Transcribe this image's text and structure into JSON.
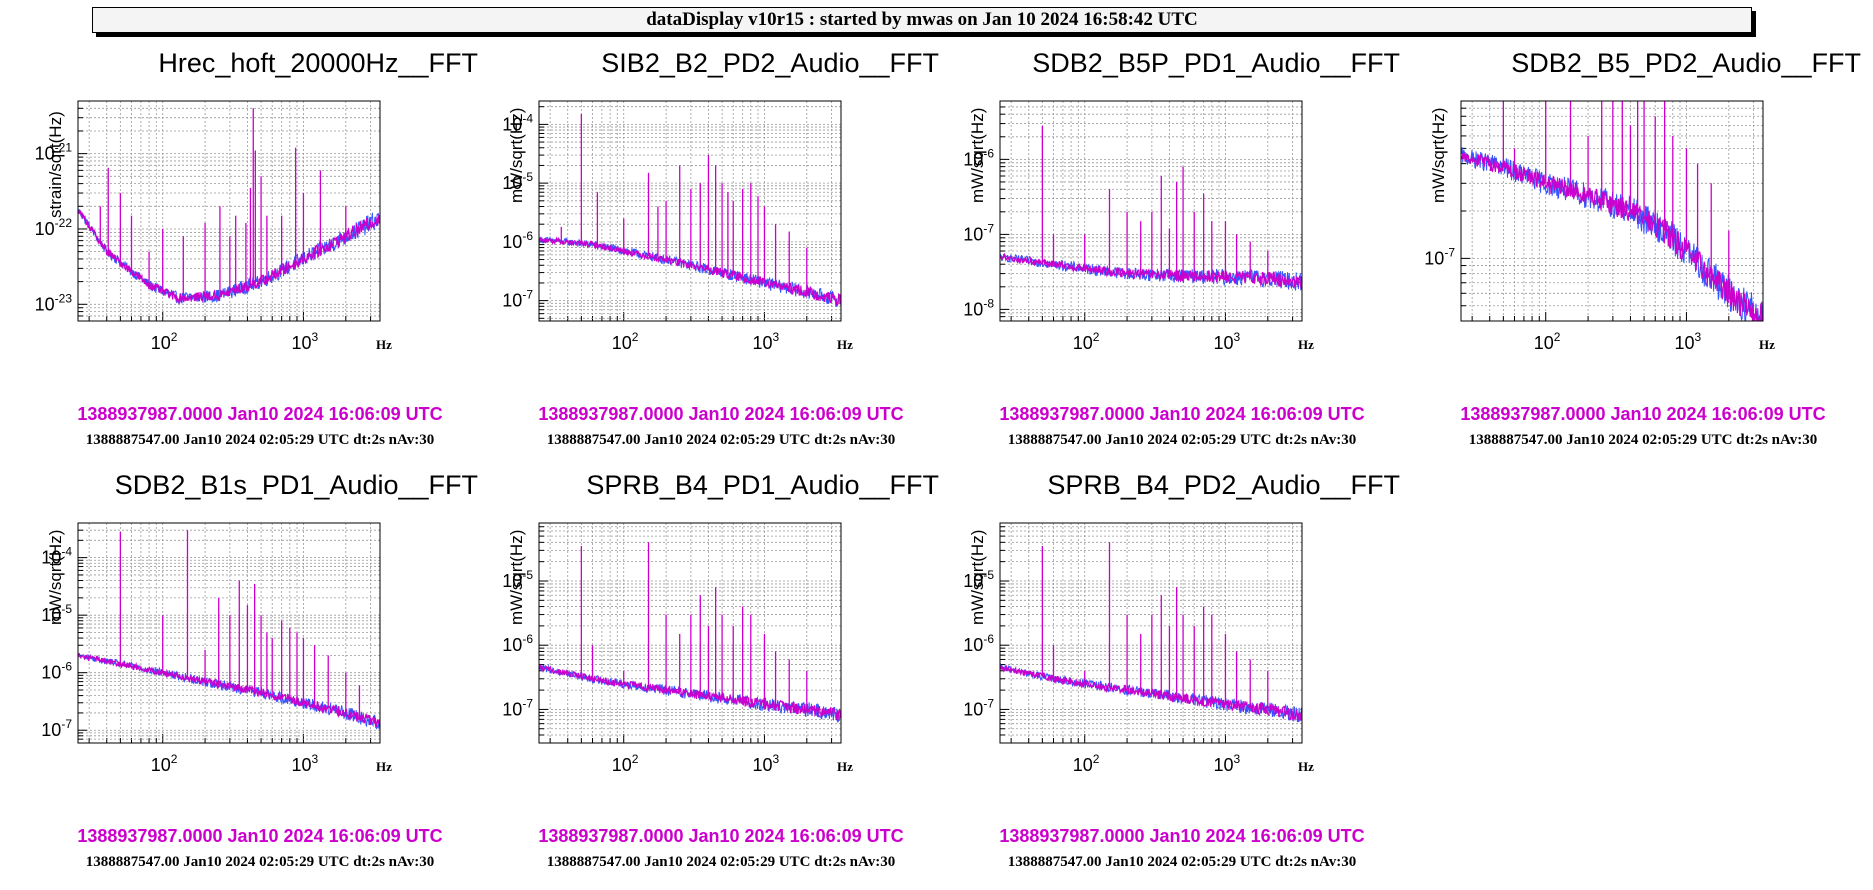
{
  "header": {
    "title": "dataDisplay v10r15 : started by mwas on Jan 10 2024 16:58:42 UTC"
  },
  "colors": {
    "trace_front": "#cc00cc",
    "trace_back": "#3355ff",
    "grid": "#999999",
    "stamp": "#cc00cc"
  },
  "chart_data": [
    {
      "type": "line",
      "title": "Hrec_hoft_20000Hz__FFT",
      "ylabel": "strain/sqrt(Hz)",
      "xlabel": "Hz",
      "xscale": "log",
      "yscale": "log",
      "xlim": [
        25,
        3500
      ],
      "ylim": [
        6e-24,
        5e-21
      ],
      "x_ticks": [
        {
          "v": 100,
          "m": "10",
          "e": "2"
        },
        {
          "v": 1000,
          "m": "10",
          "e": "3"
        }
      ],
      "y_ticks": [
        {
          "v": 1e-21,
          "m": "10",
          "e": "-21"
        },
        {
          "v": 1e-22,
          "m": "10",
          "e": "-22"
        },
        {
          "v": 1e-23,
          "m": "10",
          "e": "-23"
        }
      ],
      "baseline": [
        [
          25,
          1.8e-22
        ],
        [
          40,
          5e-23
        ],
        [
          80,
          1.8e-23
        ],
        [
          130,
          1.2e-23
        ],
        [
          250,
          1.3e-23
        ],
        [
          500,
          2e-23
        ],
        [
          1000,
          4e-23
        ],
        [
          2000,
          8e-23
        ],
        [
          3500,
          1.4e-22
        ]
      ],
      "peaks": [
        [
          36,
          2e-22
        ],
        [
          41,
          6.5e-22
        ],
        [
          50,
          3e-22
        ],
        [
          60,
          1.5e-22
        ],
        [
          80,
          5e-23
        ],
        [
          100,
          1e-22
        ],
        [
          140,
          8e-23
        ],
        [
          200,
          1.2e-22
        ],
        [
          255,
          2e-22
        ],
        [
          300,
          8e-23
        ],
        [
          330,
          1.5e-22
        ],
        [
          390,
          1.2e-22
        ],
        [
          420,
          3.5e-22
        ],
        [
          440,
          4e-21
        ],
        [
          455,
          1.1e-21
        ],
        [
          500,
          5e-22
        ],
        [
          550,
          1.5e-22
        ],
        [
          700,
          1.5e-22
        ],
        [
          880,
          1.2e-21
        ],
        [
          1000,
          3e-22
        ],
        [
          1320,
          6e-22
        ],
        [
          2000,
          2e-22
        ]
      ],
      "stamp_time": "1388937987.0000 Jan10 2024 16:06:09 UTC",
      "stamp_info": "1388887547.00 Jan10 2024 02:05:29 UTC dt:2s nAv:30"
    },
    {
      "type": "line",
      "title": "SIB2_B2_PD2_Audio__FFT",
      "ylabel": "mW/sqrt(Hz)",
      "xlabel": "Hz",
      "xscale": "log",
      "yscale": "log",
      "xlim": [
        25,
        3500
      ],
      "ylim": [
        4.5e-08,
        0.00025
      ],
      "x_ticks": [
        {
          "v": 100,
          "m": "10",
          "e": "2"
        },
        {
          "v": 1000,
          "m": "10",
          "e": "3"
        }
      ],
      "y_ticks": [
        {
          "v": 0.0001,
          "m": "10",
          "e": "-4"
        },
        {
          "v": 1e-05,
          "m": "10",
          "e": "-5"
        },
        {
          "v": 1e-06,
          "m": "10",
          "e": "-6"
        },
        {
          "v": 1e-07,
          "m": "10",
          "e": "-7"
        }
      ],
      "baseline": [
        [
          25,
          1.1e-06
        ],
        [
          60,
          9e-07
        ],
        [
          100,
          7e-07
        ],
        [
          200,
          5e-07
        ],
        [
          500,
          3e-07
        ],
        [
          1000,
          2e-07
        ],
        [
          2000,
          1.4e-07
        ],
        [
          3500,
          1e-07
        ]
      ],
      "peaks": [
        [
          36,
          1.8e-06
        ],
        [
          50,
          0.00015
        ],
        [
          65,
          7e-06
        ],
        [
          100,
          2.5e-06
        ],
        [
          150,
          1.5e-05
        ],
        [
          175,
          4e-06
        ],
        [
          200,
          5e-06
        ],
        [
          250,
          2e-05
        ],
        [
          300,
          8e-06
        ],
        [
          350,
          1e-05
        ],
        [
          400,
          3e-05
        ],
        [
          450,
          2e-05
        ],
        [
          500,
          1e-05
        ],
        [
          550,
          7e-06
        ],
        [
          600,
          5e-06
        ],
        [
          700,
          8e-06
        ],
        [
          800,
          1e-05
        ],
        [
          900,
          6e-06
        ],
        [
          1000,
          4e-06
        ],
        [
          1200,
          2e-06
        ],
        [
          1500,
          1.5e-06
        ],
        [
          2000,
          8e-07
        ]
      ],
      "stamp_time": "1388937987.0000 Jan10 2024 16:06:09 UTC",
      "stamp_info": "1388887547.00 Jan10 2024 02:05:29 UTC dt:2s nAv:30"
    },
    {
      "type": "line",
      "title": "SDB2_B5P_PD1_Audio__FFT",
      "ylabel": "mW/sqrt(Hz)",
      "xlabel": "Hz",
      "xscale": "log",
      "yscale": "log",
      "xlim": [
        25,
        3500
      ],
      "ylim": [
        7e-09,
        6e-06
      ],
      "x_ticks": [
        {
          "v": 100,
          "m": "10",
          "e": "2"
        },
        {
          "v": 1000,
          "m": "10",
          "e": "3"
        }
      ],
      "y_ticks": [
        {
          "v": 1e-06,
          "m": "10",
          "e": "-6"
        },
        {
          "v": 1e-07,
          "m": "10",
          "e": "-7"
        },
        {
          "v": 1e-08,
          "m": "10",
          "e": "-8"
        }
      ],
      "baseline": [
        [
          25,
          5e-08
        ],
        [
          60,
          4e-08
        ],
        [
          100,
          3.5e-08
        ],
        [
          200,
          3e-08
        ],
        [
          500,
          2.8e-08
        ],
        [
          1000,
          2.7e-08
        ],
        [
          2000,
          2.6e-08
        ],
        [
          3500,
          2.3e-08
        ]
      ],
      "peaks": [
        [
          50,
          2.8e-06
        ],
        [
          60,
          1e-07
        ],
        [
          100,
          1e-07
        ],
        [
          150,
          4e-07
        ],
        [
          200,
          2e-07
        ],
        [
          250,
          1.5e-07
        ],
        [
          300,
          2e-07
        ],
        [
          350,
          6e-07
        ],
        [
          400,
          1.2e-07
        ],
        [
          450,
          5e-07
        ],
        [
          500,
          8e-07
        ],
        [
          600,
          2e-07
        ],
        [
          700,
          3.5e-07
        ],
        [
          800,
          1.5e-07
        ],
        [
          1000,
          1.5e-07
        ],
        [
          1200,
          1e-07
        ],
        [
          1500,
          8e-08
        ],
        [
          2000,
          6e-08
        ]
      ],
      "stamp_time": "1388937987.0000 Jan10 2024 16:06:09 UTC",
      "stamp_info": "1388887547.00 Jan10 2024 02:05:29 UTC dt:2s nAv:30"
    },
    {
      "type": "line",
      "title": "SDB2_B5_PD2_Audio__FFT",
      "ylabel": "mW/sqrt(Hz)",
      "xlabel": "Hz",
      "xscale": "log",
      "yscale": "log",
      "xlim": [
        25,
        3500
      ],
      "ylim": [
        4e-08,
        1e-06
      ],
      "x_ticks": [
        {
          "v": 100,
          "m": "10",
          "e": "2"
        },
        {
          "v": 1000,
          "m": "10",
          "e": "3"
        }
      ],
      "y_ticks": [
        {
          "v": 1e-07,
          "m": "10",
          "e": "-7"
        }
      ],
      "baseline": [
        [
          25,
          4.5e-07
        ],
        [
          50,
          3.8e-07
        ],
        [
          100,
          3e-07
        ],
        [
          200,
          2.5e-07
        ],
        [
          400,
          2e-07
        ],
        [
          700,
          1.5e-07
        ],
        [
          1000,
          1.1e-07
        ],
        [
          2000,
          6e-08
        ],
        [
          3500,
          4.2e-08
        ]
      ],
      "peaks": [
        [
          50,
          1e-06
        ],
        [
          60,
          5e-07
        ],
        [
          100,
          1e-06
        ],
        [
          150,
          1e-06
        ],
        [
          200,
          6e-07
        ],
        [
          250,
          1e-06
        ],
        [
          300,
          1e-06
        ],
        [
          350,
          1e-06
        ],
        [
          400,
          7e-07
        ],
        [
          450,
          1e-06
        ],
        [
          500,
          1e-06
        ],
        [
          600,
          8e-07
        ],
        [
          700,
          1e-06
        ],
        [
          800,
          6e-07
        ],
        [
          1000,
          5e-07
        ],
        [
          1200,
          4e-07
        ],
        [
          1500,
          3e-07
        ],
        [
          2000,
          1.5e-07
        ]
      ],
      "stamp_time": "1388937987.0000 Jan10 2024 16:06:09 UTC",
      "stamp_info": "1388887547.00 Jan10 2024 02:05:29 UTC dt:2s nAv:30"
    },
    {
      "type": "line",
      "title": "SDB2_B1s_PD1_Audio__FFT",
      "ylabel": "mW/sqrt(Hz)",
      "xlabel": "Hz",
      "xscale": "log",
      "yscale": "log",
      "xlim": [
        25,
        3500
      ],
      "ylim": [
        6e-08,
        0.0004
      ],
      "x_ticks": [
        {
          "v": 100,
          "m": "10",
          "e": "2"
        },
        {
          "v": 1000,
          "m": "10",
          "e": "3"
        }
      ],
      "y_ticks": [
        {
          "v": 0.0001,
          "m": "10",
          "e": "-4"
        },
        {
          "v": 1e-05,
          "m": "10",
          "e": "-5"
        },
        {
          "v": 1e-06,
          "m": "10",
          "e": "-6"
        },
        {
          "v": 1e-07,
          "m": "10",
          "e": "-7"
        }
      ],
      "baseline": [
        [
          25,
          2e-06
        ],
        [
          60,
          1.3e-06
        ],
        [
          100,
          1e-06
        ],
        [
          200,
          7e-07
        ],
        [
          500,
          4.5e-07
        ],
        [
          1000,
          3e-07
        ],
        [
          2000,
          2e-07
        ],
        [
          3500,
          1.3e-07
        ]
      ],
      "peaks": [
        [
          50,
          0.00028
        ],
        [
          100,
          1e-05
        ],
        [
          150,
          0.0003
        ],
        [
          200,
          2.5e-06
        ],
        [
          250,
          2e-05
        ],
        [
          300,
          1e-05
        ],
        [
          350,
          4e-05
        ],
        [
          400,
          1.5e-05
        ],
        [
          450,
          3.5e-05
        ],
        [
          500,
          1e-05
        ],
        [
          550,
          5e-06
        ],
        [
          600,
          4e-06
        ],
        [
          700,
          8e-06
        ],
        [
          800,
          6e-06
        ],
        [
          900,
          5e-06
        ],
        [
          1000,
          4e-06
        ],
        [
          1200,
          3e-06
        ],
        [
          1500,
          2e-06
        ],
        [
          2000,
          1e-06
        ],
        [
          2500,
          6e-07
        ]
      ],
      "stamp_time": "1388937987.0000 Jan10 2024 16:06:09 UTC",
      "stamp_info": "1388887547.00 Jan10 2024 02:05:29 UTC dt:2s nAv:30"
    },
    {
      "type": "line",
      "title": "SPRB_B4_PD1_Audio__FFT",
      "ylabel": "mW/sqrt(Hz)",
      "xlabel": "Hz",
      "xscale": "log",
      "yscale": "log",
      "xlim": [
        25,
        3500
      ],
      "ylim": [
        3e-08,
        8e-05
      ],
      "x_ticks": [
        {
          "v": 100,
          "m": "10",
          "e": "2"
        },
        {
          "v": 1000,
          "m": "10",
          "e": "3"
        }
      ],
      "y_ticks": [
        {
          "v": 1e-05,
          "m": "10",
          "e": "-5"
        },
        {
          "v": 1e-06,
          "m": "10",
          "e": "-6"
        },
        {
          "v": 1e-07,
          "m": "10",
          "e": "-7"
        }
      ],
      "baseline": [
        [
          25,
          4.5e-07
        ],
        [
          60,
          3e-07
        ],
        [
          100,
          2.5e-07
        ],
        [
          200,
          2e-07
        ],
        [
          500,
          1.5e-07
        ],
        [
          1000,
          1.2e-07
        ],
        [
          2000,
          1e-07
        ],
        [
          3500,
          8e-08
        ]
      ],
      "peaks": [
        [
          50,
          3.5e-05
        ],
        [
          60,
          1e-06
        ],
        [
          100,
          4e-07
        ],
        [
          150,
          4e-05
        ],
        [
          200,
          3e-06
        ],
        [
          250,
          1.5e-06
        ],
        [
          300,
          3e-06
        ],
        [
          350,
          6e-06
        ],
        [
          400,
          2e-06
        ],
        [
          450,
          8e-06
        ],
        [
          500,
          3e-06
        ],
        [
          600,
          2e-06
        ],
        [
          700,
          4e-06
        ],
        [
          800,
          3e-06
        ],
        [
          1000,
          1.5e-06
        ],
        [
          1200,
          8e-07
        ],
        [
          1500,
          6e-07
        ],
        [
          2000,
          4e-07
        ]
      ],
      "stamp_time": "1388937987.0000 Jan10 2024 16:06:09 UTC",
      "stamp_info": "1388887547.00 Jan10 2024 02:05:29 UTC dt:2s nAv:30"
    },
    {
      "type": "line",
      "title": "SPRB_B4_PD2_Audio__FFT",
      "ylabel": "mW/sqrt(Hz)",
      "xlabel": "Hz",
      "xscale": "log",
      "yscale": "log",
      "xlim": [
        25,
        3500
      ],
      "ylim": [
        3e-08,
        8e-05
      ],
      "x_ticks": [
        {
          "v": 100,
          "m": "10",
          "e": "2"
        },
        {
          "v": 1000,
          "m": "10",
          "e": "3"
        }
      ],
      "y_ticks": [
        {
          "v": 1e-05,
          "m": "10",
          "e": "-5"
        },
        {
          "v": 1e-06,
          "m": "10",
          "e": "-6"
        },
        {
          "v": 1e-07,
          "m": "10",
          "e": "-7"
        }
      ],
      "baseline": [
        [
          25,
          4.5e-07
        ],
        [
          60,
          3e-07
        ],
        [
          100,
          2.5e-07
        ],
        [
          200,
          2e-07
        ],
        [
          500,
          1.5e-07
        ],
        [
          1000,
          1.2e-07
        ],
        [
          2000,
          1e-07
        ],
        [
          3500,
          8e-08
        ]
      ],
      "peaks": [
        [
          50,
          3.5e-05
        ],
        [
          60,
          1e-06
        ],
        [
          100,
          4e-07
        ],
        [
          150,
          4e-05
        ],
        [
          200,
          3e-06
        ],
        [
          250,
          1.5e-06
        ],
        [
          300,
          3e-06
        ],
        [
          350,
          6e-06
        ],
        [
          400,
          2e-06
        ],
        [
          450,
          8e-06
        ],
        [
          500,
          3e-06
        ],
        [
          600,
          2e-06
        ],
        [
          700,
          4e-06
        ],
        [
          800,
          3e-06
        ],
        [
          1000,
          1.5e-06
        ],
        [
          1200,
          8e-07
        ],
        [
          1500,
          6e-07
        ],
        [
          2000,
          4e-07
        ]
      ],
      "stamp_time": "1388937987.0000 Jan10 2024 16:06:09 UTC",
      "stamp_info": "1388887547.00 Jan10 2024 02:05:29 UTC dt:2s nAv:30"
    }
  ]
}
